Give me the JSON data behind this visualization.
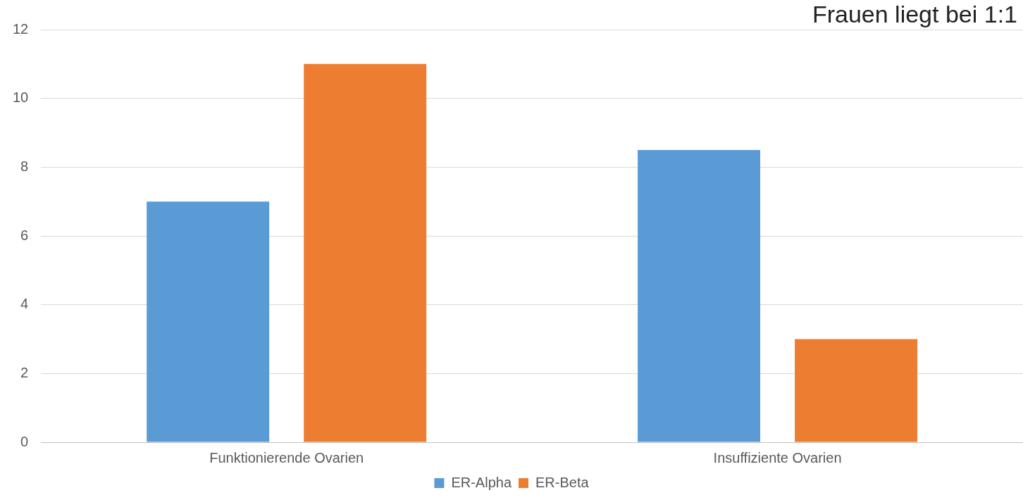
{
  "chart_data": {
    "type": "bar",
    "categories": [
      "Funktionierende Ovarien",
      "Insuffiziente Ovarien"
    ],
    "series": [
      {
        "name": "ER-Alpha",
        "color": "#5b9bd5",
        "values": [
          7,
          8.5
        ]
      },
      {
        "name": "ER-Beta",
        "color": "#ed7d31",
        "values": [
          11,
          3
        ]
      }
    ],
    "ylim": [
      0,
      12
    ],
    "yticks": [
      0,
      2,
      4,
      6,
      8,
      10,
      12
    ],
    "grid": "y",
    "legend": "bottom",
    "annotations": [
      "Frauen liegt bei 1:1"
    ]
  }
}
